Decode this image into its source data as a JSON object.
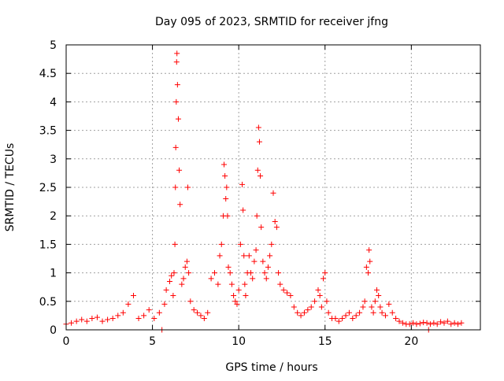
{
  "chart_data": {
    "type": "scatter",
    "title": "Day 095 of 2023, SRMTID for receiver jfng",
    "xlabel": "GPS time / hours",
    "ylabel": "SRMTID / TECUs",
    "xlim": [
      0,
      24
    ],
    "ylim": [
      0,
      5
    ],
    "x_ticks": [
      "0",
      "5",
      "10",
      "15",
      "20"
    ],
    "y_ticks": [
      "0",
      "0.5",
      "1",
      "1.5",
      "2",
      "2.5",
      "3",
      "3.5",
      "4",
      "4.5",
      "5"
    ],
    "grid": true,
    "marker": "+",
    "series": [
      {
        "name": "SRMTID",
        "color": "#ff0000",
        "x": [
          0.0,
          0.3,
          0.6,
          0.9,
          1.2,
          1.5,
          1.8,
          2.1,
          2.4,
          2.7,
          3.0,
          3.3,
          3.6,
          3.9,
          4.2,
          4.5,
          4.8,
          5.1,
          5.4,
          5.7,
          5.55,
          5.8,
          6.0,
          6.1,
          6.2,
          6.25,
          6.3,
          6.33,
          6.35,
          6.38,
          6.4,
          6.42,
          6.45,
          6.5,
          6.55,
          6.6,
          6.7,
          6.8,
          6.9,
          7.0,
          7.05,
          7.1,
          7.2,
          7.4,
          7.6,
          7.8,
          8.0,
          8.2,
          8.4,
          8.6,
          8.8,
          8.9,
          9.0,
          9.1,
          9.15,
          9.2,
          9.25,
          9.3,
          9.35,
          9.4,
          9.5,
          9.6,
          9.7,
          9.8,
          9.9,
          10.0,
          10.1,
          10.2,
          10.25,
          10.3,
          10.35,
          10.4,
          10.5,
          10.6,
          10.7,
          10.8,
          10.9,
          11.0,
          11.05,
          11.1,
          11.15,
          11.2,
          11.25,
          11.3,
          11.4,
          11.5,
          11.6,
          11.7,
          11.8,
          11.9,
          12.0,
          12.1,
          12.2,
          12.3,
          12.4,
          12.6,
          12.8,
          13.0,
          13.2,
          13.4,
          13.6,
          13.8,
          14.0,
          14.2,
          14.4,
          14.6,
          14.7,
          14.8,
          14.9,
          15.0,
          15.1,
          15.2,
          15.4,
          15.6,
          15.8,
          16.0,
          16.2,
          16.4,
          16.6,
          16.8,
          17.0,
          17.2,
          17.3,
          17.4,
          17.5,
          17.55,
          17.6,
          17.7,
          17.8,
          17.9,
          18.0,
          18.1,
          18.2,
          18.3,
          18.5,
          18.7,
          18.9,
          19.1,
          19.3,
          19.5,
          19.7,
          19.9,
          20.1,
          20.3,
          20.5,
          20.7,
          20.9,
          21.1,
          21.3,
          21.5,
          21.7,
          21.9,
          22.1,
          22.3,
          22.5,
          22.7,
          22.9,
          21.0
        ],
        "y": [
          0.1,
          0.12,
          0.15,
          0.18,
          0.15,
          0.2,
          0.22,
          0.15,
          0.18,
          0.2,
          0.25,
          0.3,
          0.45,
          0.6,
          0.2,
          0.25,
          0.35,
          0.2,
          0.3,
          0.45,
          0.0,
          0.7,
          0.85,
          0.95,
          0.6,
          1.0,
          1.5,
          2.5,
          3.2,
          4.0,
          4.7,
          4.85,
          4.3,
          3.7,
          2.8,
          2.2,
          0.8,
          0.9,
          1.1,
          1.2,
          2.5,
          1.0,
          0.5,
          0.35,
          0.3,
          0.25,
          0.2,
          0.3,
          0.9,
          1.0,
          0.8,
          1.3,
          1.5,
          2.0,
          2.9,
          2.7,
          2.3,
          2.5,
          2.0,
          1.1,
          1.0,
          0.8,
          0.6,
          0.5,
          0.45,
          0.7,
          1.5,
          2.55,
          2.1,
          1.3,
          0.8,
          0.6,
          1.0,
          1.3,
          1.0,
          0.9,
          1.2,
          1.4,
          2.0,
          2.8,
          3.55,
          3.3,
          2.7,
          1.8,
          1.2,
          1.0,
          0.9,
          1.1,
          1.3,
          1.5,
          2.4,
          1.9,
          1.8,
          1.0,
          0.8,
          0.7,
          0.65,
          0.6,
          0.4,
          0.3,
          0.25,
          0.3,
          0.35,
          0.4,
          0.5,
          0.7,
          0.6,
          0.4,
          0.9,
          1.0,
          0.5,
          0.3,
          0.2,
          0.2,
          0.15,
          0.2,
          0.25,
          0.3,
          0.2,
          0.25,
          0.3,
          0.4,
          0.5,
          1.1,
          1.0,
          1.4,
          1.2,
          0.4,
          0.3,
          0.5,
          0.7,
          0.6,
          0.4,
          0.3,
          0.25,
          0.45,
          0.3,
          0.2,
          0.15,
          0.12,
          0.1,
          0.1,
          0.12,
          0.1,
          0.11,
          0.13,
          0.12,
          0.1,
          0.12,
          0.1,
          0.14,
          0.12,
          0.15,
          0.1,
          0.12,
          0.1,
          0.12,
          0.0
        ]
      }
    ]
  }
}
